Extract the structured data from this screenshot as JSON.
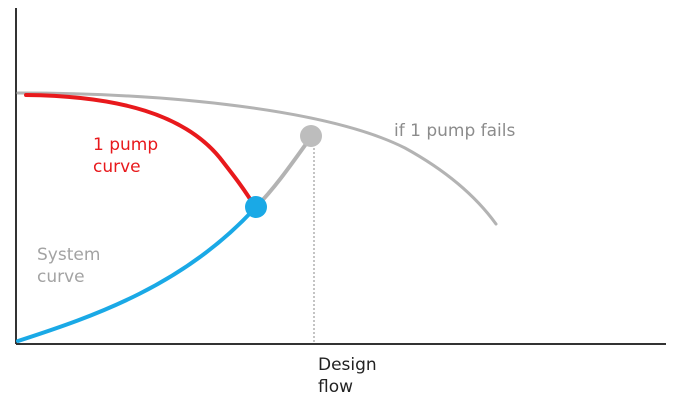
{
  "labels": {
    "one_pump_curve": [
      "1 pump",
      "curve"
    ],
    "if_one_pump_fails": "if 1 pump fails",
    "system_curve": [
      "System",
      "curve"
    ],
    "design_flow": [
      "Design",
      "flow"
    ]
  },
  "colors": {
    "axis": "#333333",
    "one_pump_curve": "#e8191c",
    "two_pump_curve": "#b3b3b3",
    "system_curve": "#1aa9e6",
    "system_curve_extension": "#b3b3b3",
    "operating_point_one_pump": "#1aa9e6",
    "operating_point_design": "#bdbdbd",
    "design_flow_guide": "#888888",
    "system_label": "#a3a3a3",
    "fails_label": "#8c8c8c",
    "design_label": "#222222"
  }
}
